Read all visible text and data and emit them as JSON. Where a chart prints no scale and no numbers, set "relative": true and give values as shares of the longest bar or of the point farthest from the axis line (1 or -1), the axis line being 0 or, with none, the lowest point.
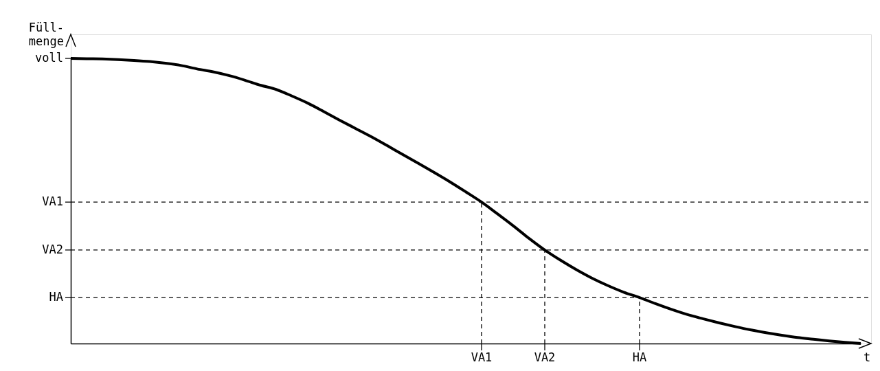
{
  "chart_data": {
    "type": "line",
    "relative": true,
    "xlabel": "t",
    "ylabel": "Füll-\nmenge",
    "categories": [
      null,
      null,
      null,
      null,
      null,
      null,
      null,
      null,
      null,
      null,
      null,
      null,
      null,
      null,
      null,
      null,
      null,
      null,
      null,
      null,
      null,
      null,
      null,
      null,
      null,
      null,
      "VA1",
      null,
      null,
      null,
      "VA2",
      null,
      null,
      null,
      null,
      null,
      "HA",
      null,
      null,
      null,
      null,
      null,
      null,
      null,
      null,
      null,
      null,
      null,
      null,
      null,
      null
    ],
    "series": [
      {
        "color": "#000000",
        "values": [
          1.0,
          0.999,
          0.998,
          0.996,
          0.993,
          0.989,
          0.983,
          0.975,
          0.963,
          0.953,
          0.94,
          0.924,
          0.906,
          0.891,
          0.868,
          0.843,
          0.814,
          0.784,
          0.755,
          0.726,
          0.695,
          0.663,
          0.632,
          0.6,
          0.567,
          0.532,
          0.496,
          0.455,
          0.413,
          0.369,
          0.328,
          0.292,
          0.259,
          0.229,
          0.203,
          0.18,
          0.161,
          0.14,
          0.12,
          0.102,
          0.087,
          0.073,
          0.06,
          0.048,
          0.038,
          0.029,
          0.021,
          0.015,
          0.009,
          0.004,
          0.0
        ]
      }
    ],
    "annotations": [
      "voll"
    ],
    "ref_lines": [
      {
        "axis": "y",
        "value": 0.496,
        "label": "VA1",
        "color": "#000000",
        "line_style": "dashed"
      },
      {
        "axis": "y",
        "value": 0.328,
        "label": "VA2",
        "color": "#000000",
        "line_style": "dashed"
      },
      {
        "axis": "y",
        "value": 0.161,
        "label": "HA",
        "color": "#000000",
        "line_style": "dashed"
      },
      {
        "axis": "x",
        "value": "VA1",
        "color": "#000000",
        "line_style": "dashed"
      },
      {
        "axis": "x",
        "value": "VA2",
        "color": "#000000",
        "line_style": "dashed"
      },
      {
        "axis": "x",
        "value": "HA",
        "color": "#000000",
        "line_style": "dashed"
      }
    ],
    "grid": false,
    "marker": "none",
    "line_style": "solid"
  }
}
